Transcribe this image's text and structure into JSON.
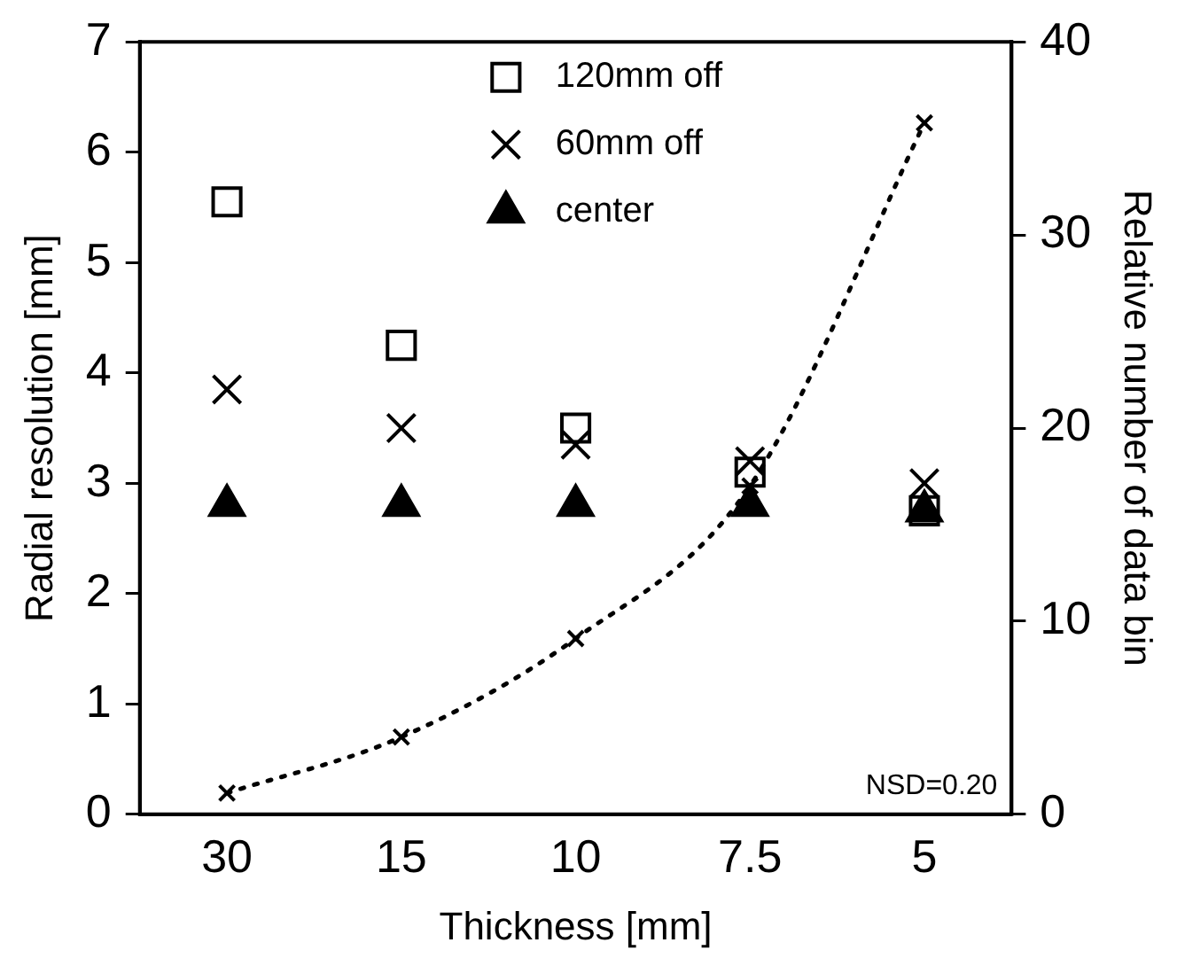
{
  "chart_data": {
    "type": "scatter",
    "xlabel": "Thickness [mm]",
    "ylabel": "Radial resolution [mm]",
    "y2label": "Relative number of data bin",
    "categories": [
      "30",
      "15",
      "10",
      "7.5",
      "5"
    ],
    "series": [
      {
        "name": "120mm off",
        "color": "#000000",
        "marker": "square",
        "values": [
          5.55,
          4.25,
          3.5,
          3.1,
          2.75
        ]
      },
      {
        "name": "60mm off",
        "color": "#000000",
        "marker": "cross",
        "values": [
          3.85,
          3.5,
          3.35,
          3.2,
          3.0
        ]
      },
      {
        "name": "center",
        "color": "#000000",
        "marker": "triangle",
        "values": [
          2.8,
          2.8,
          2.8,
          2.8,
          2.75
        ]
      },
      {
        "type": "line",
        "axis": "y2",
        "color": "#000000",
        "marker": "cross",
        "line_style": "dotted",
        "values": [
          1.1,
          4,
          9.1,
          17,
          35.8
        ]
      }
    ],
    "ylim": [
      0,
      7
    ],
    "yticks": [
      0,
      1,
      2,
      3,
      4,
      5,
      6,
      7
    ],
    "y2lim": [
      0,
      40
    ],
    "y2ticks": [
      0,
      10,
      20,
      30,
      40
    ],
    "annotations": [
      "NSD=0.20"
    ],
    "legend": "top",
    "grid": false
  }
}
